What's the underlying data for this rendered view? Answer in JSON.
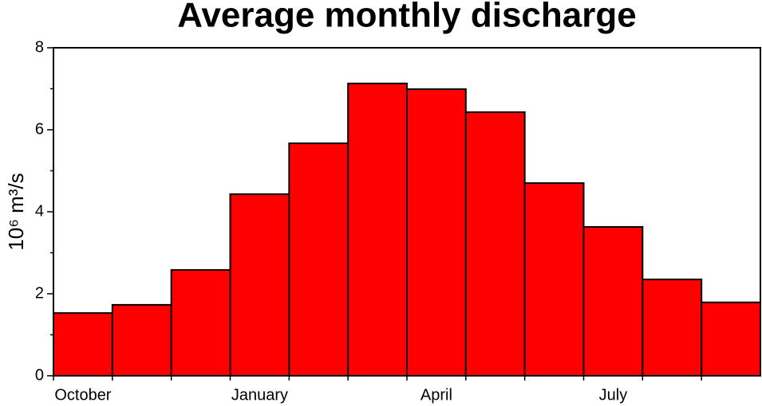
{
  "chart_data": {
    "type": "bar",
    "title": "Average monthly discharge",
    "ylabel": "10⁶ m³/s",
    "categories": [
      "October",
      null,
      null,
      "January",
      null,
      null,
      "April",
      null,
      null,
      "July",
      null,
      null
    ],
    "values": [
      1.53,
      1.73,
      2.58,
      4.43,
      5.67,
      7.13,
      6.99,
      6.43,
      4.7,
      3.63,
      2.35,
      1.79
    ],
    "color": "#ff0000",
    "ylim": [
      0,
      8
    ],
    "yticks": [
      0,
      2,
      4,
      6,
      8
    ],
    "grid": false
  }
}
